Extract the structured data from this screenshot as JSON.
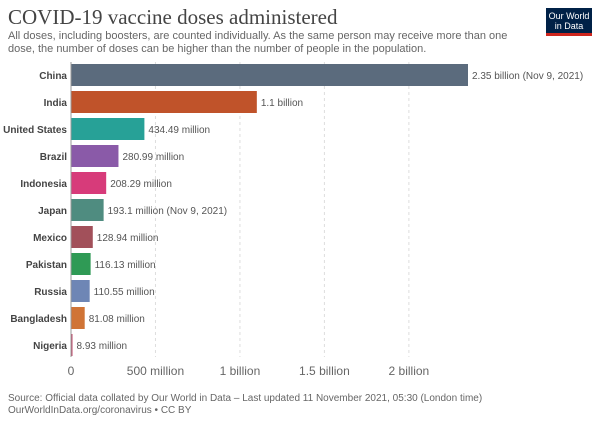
{
  "header": {
    "title": "COVID-19 vaccine doses administered",
    "subtitle": "All doses, including boosters, are counted individually. As the same person may receive more than one dose, the number of doses can be higher than the number of people in the population.",
    "logo_line1": "Our World",
    "logo_line2": "in Data"
  },
  "footer": {
    "source": "Source: Official data collated by Our World in Data – Last updated 11 November 2021, 05:30 (London time)",
    "license": "OurWorldInData.org/coronavirus • CC BY"
  },
  "chart_data": {
    "type": "bar",
    "orientation": "horizontal",
    "categories": [
      "China",
      "India",
      "United States",
      "Brazil",
      "Indonesia",
      "Japan",
      "Mexico",
      "Pakistan",
      "Russia",
      "Bangladesh",
      "Nigeria"
    ],
    "values": [
      2350000000,
      1100000000,
      434490000,
      280990000,
      208290000,
      193100000,
      128940000,
      116130000,
      110550000,
      81080000,
      8930000
    ],
    "value_labels": [
      "2.35 billion (Nov 9, 2021)",
      "1.1 billion",
      "434.49 million",
      "280.99 million",
      "208.29 million",
      "193.1 million (Nov 9, 2021)",
      "128.94 million",
      "116.13 million",
      "110.55 million",
      "81.08 million",
      "8.93 million"
    ],
    "colors": [
      "#5b6b7d",
      "#c0532a",
      "#27a197",
      "#8a5aa8",
      "#d73b7a",
      "#4f8c80",
      "#a2505a",
      "#2f9a55",
      "#6e86b5",
      "#d07436",
      "#c04a6a"
    ],
    "x_ticks": [
      0,
      500000000,
      1000000000,
      1500000000,
      2000000000
    ],
    "x_tick_labels": [
      "0",
      "500 million",
      "1 billion",
      "1.5 billion",
      "2 billion"
    ],
    "xlim": [
      0,
      2350000000
    ],
    "grid": "vertical dashed",
    "legend": "none"
  }
}
